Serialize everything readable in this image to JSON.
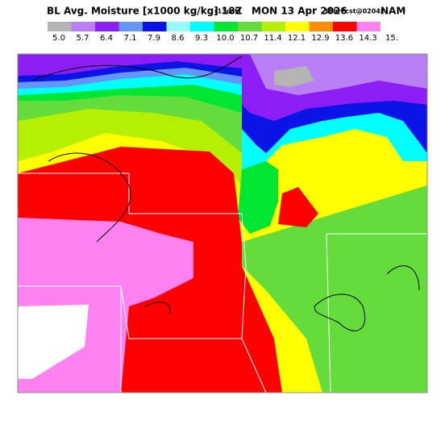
{
  "header": {
    "title": "BL Avg. Moisture [x1000 kg/kg] 18Z",
    "time_note": "(13cdt)",
    "date": "MON 13 Apr 2026",
    "forecast": "18hrFcst@0204z",
    "model": "NAM"
  },
  "colorbar": {
    "labels": [
      "5.0",
      "5.7",
      "6.4",
      "7.1",
      "7.9",
      "8.6",
      "9.3",
      "10.0",
      "10.7",
      "11.4",
      "12.1",
      "12.9",
      "13.6",
      "14.3",
      "15."
    ],
    "colors": [
      "#b4b4b4",
      "#b980f5",
      "#8c1ef5",
      "#6496fa",
      "#0a14e6",
      "#96faff",
      "#00ffff",
      "#00e632",
      "#64dc3c",
      "#b4f000",
      "#ffff00",
      "#ff8c00",
      "#ff0000",
      "#ff82f0"
    ]
  }
}
